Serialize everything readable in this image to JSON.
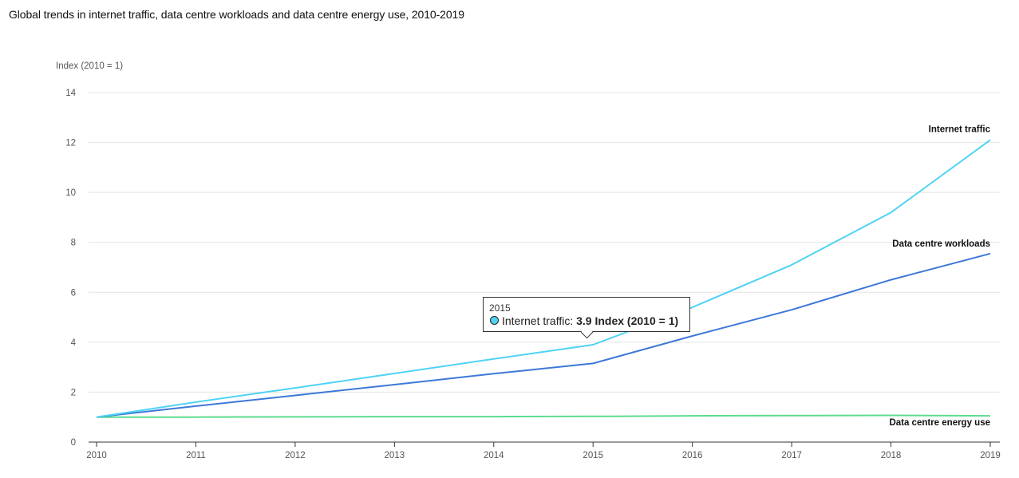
{
  "title": "Global trends in internet traffic, data centre workloads and data centre energy use, 2010-2019",
  "chart_data": {
    "type": "line",
    "title": "Global trends in internet traffic, data centre workloads and data centre energy use, 2010-2019",
    "ylabel": "Index (2010 = 1)",
    "xlabel": "",
    "x": [
      "2010",
      "2011",
      "2012",
      "2013",
      "2014",
      "2015",
      "2016",
      "2017",
      "2018",
      "2019"
    ],
    "ylim": [
      0,
      14
    ],
    "yticks": [
      "0",
      "2",
      "4",
      "6",
      "8",
      "10",
      "12",
      "14"
    ],
    "grid": true,
    "series": [
      {
        "name": "Internet traffic",
        "color": "#4fd3f5",
        "values": [
          1,
          1.6,
          2.17,
          2.75,
          3.33,
          3.9,
          5.4,
          7.1,
          9.2,
          12.1
        ]
      },
      {
        "name": "Data centre workloads",
        "color": "#3d78d8",
        "values": [
          1,
          1.44,
          1.87,
          2.3,
          2.74,
          3.15,
          4.25,
          5.3,
          6.5,
          7.55
        ]
      },
      {
        "name": "Data centre energy use",
        "color": "#5ddc8f",
        "values": [
          1,
          1.0,
          1.01,
          1.02,
          1.02,
          1.03,
          1.05,
          1.06,
          1.07,
          1.05
        ]
      }
    ]
  },
  "tooltip": {
    "year": "2015",
    "series": "Internet traffic:",
    "value": "3.9 Index (2010 = 1)",
    "dot_color": "#4fd3f5"
  }
}
